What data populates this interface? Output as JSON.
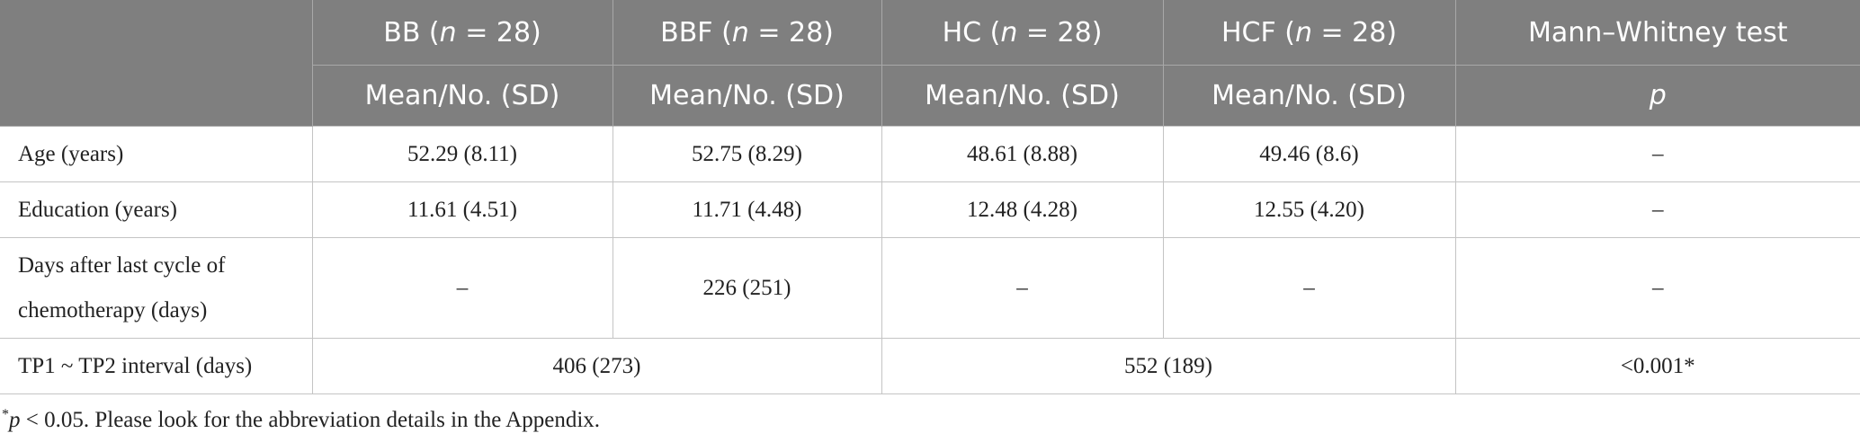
{
  "table": {
    "header_groups": [
      [
        "BB (",
        "n",
        " = 28)"
      ],
      [
        "BBF (",
        "n",
        " = 28)"
      ],
      [
        "HC (",
        "n",
        " = 28)"
      ],
      [
        "HCF (",
        "n",
        " = 28)"
      ],
      [
        "Mann–Whitney test"
      ]
    ],
    "header_stats": [
      "Mean/No. (SD)",
      "Mean/No. (SD)",
      "Mean/No. (SD)",
      "Mean/No. (SD)",
      "p"
    ],
    "rows": [
      [
        "Age (years)",
        "52.29 (8.11)",
        "52.75 (8.29)",
        "48.61 (8.88)",
        "49.46 (8.6)",
        "–"
      ],
      [
        "Education (years)",
        "11.61 (4.51)",
        "11.71 (4.48)",
        "12.48 (4.28)",
        "12.55 (4.20)",
        "–"
      ],
      [
        "Days after last cycle of chemotherapy (days)",
        "–",
        "226 (251)",
        "–",
        "–",
        "–"
      ],
      [
        "TP1 ~ TP2 interval (days)",
        "406 (273)",
        "552 (189)",
        "<0.001*"
      ]
    ],
    "footnote": [
      "*",
      "p",
      " < 0.05. Please look for the abbreviation details in the Appendix."
    ]
  }
}
